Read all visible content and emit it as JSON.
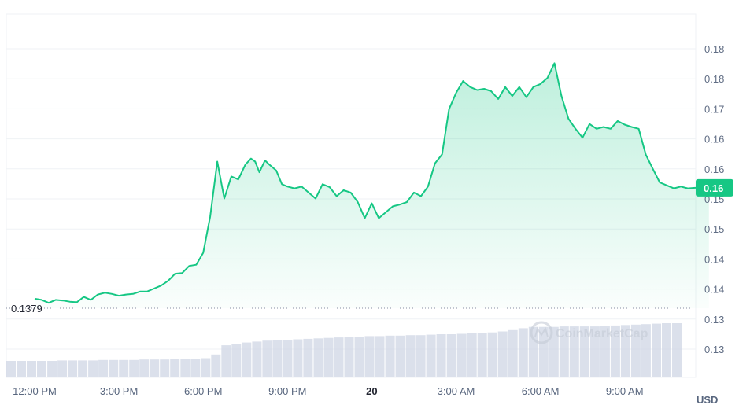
{
  "chart_data": {
    "type": "area",
    "y_ticks": [
      "0.18",
      "0.18",
      "0.17",
      "0.16",
      "0.16",
      "0.15",
      "0.15",
      "0.14",
      "0.14",
      "0.13",
      "0.13"
    ],
    "x_ticks": [
      "12:00 PM",
      "3:00 PM",
      "6:00 PM",
      "9:00 PM",
      "20",
      "3:00 AM",
      "6:00 AM",
      "9:00 AM"
    ],
    "bold_x_tick": "20",
    "unit": "USD",
    "reference_label": "0.1379",
    "reference_value": 0.1379,
    "current_value_label": "0.16",
    "current_value": 0.1581,
    "ylim": [
      0.1263,
      0.1863
    ],
    "watermark": "CoinMarketCap",
    "colors": {
      "line": "#16c784",
      "badge": "#16c784",
      "volume": "#cfd6e4",
      "grid": "#eff2f5"
    },
    "grid": true,
    "series": [
      {
        "x_hours": [
          0.0,
          0.25,
          0.5,
          0.75,
          1.0,
          1.25,
          1.5,
          1.75,
          2.0,
          2.25,
          2.5,
          2.75,
          3.0,
          3.25,
          3.5,
          3.75,
          4.0,
          4.25,
          4.5,
          4.75,
          5.0,
          5.25,
          5.5,
          5.75,
          6.0,
          6.25,
          6.5,
          6.75,
          7.0,
          7.25,
          7.5,
          7.7,
          7.85,
          8.0,
          8.2,
          8.35,
          8.6,
          8.8,
          9.0,
          9.25,
          9.5,
          9.75,
          10.0,
          10.25,
          10.5,
          10.75,
          11.0,
          11.25,
          11.5,
          11.75,
          12.0,
          12.25,
          12.5,
          12.75,
          13.0,
          13.25,
          13.5,
          13.75,
          14.0,
          14.25,
          14.5,
          14.75,
          15.0,
          15.25,
          15.5,
          15.75,
          16.0,
          16.25,
          16.5,
          16.75,
          17.0,
          17.25,
          17.5,
          17.75,
          18.0,
          18.25,
          18.5,
          18.75,
          19.0,
          19.25,
          19.5,
          19.75,
          20.0,
          20.25,
          20.5,
          20.75,
          21.0,
          21.25,
          21.5,
          21.75,
          22.0,
          22.25,
          22.5,
          22.75,
          23.0,
          23.25,
          23.5,
          23.75,
          24.0
        ],
        "values": [
          0.1395,
          0.1393,
          0.1388,
          0.1393,
          0.1392,
          0.139,
          0.1389,
          0.1398,
          0.1393,
          0.1402,
          0.1405,
          0.1403,
          0.14,
          0.1402,
          0.1403,
          0.1407,
          0.1407,
          0.1412,
          0.1417,
          0.1425,
          0.1437,
          0.1438,
          0.145,
          0.1452,
          0.1472,
          0.1533,
          0.1625,
          0.1563,
          0.16,
          0.1595,
          0.162,
          0.163,
          0.1625,
          0.1607,
          0.1627,
          0.162,
          0.161,
          0.1587,
          0.1583,
          0.158,
          0.1583,
          0.1573,
          0.1563,
          0.1587,
          0.1582,
          0.1567,
          0.1577,
          0.1573,
          0.1557,
          0.153,
          0.1555,
          0.153,
          0.154,
          0.155,
          0.1553,
          0.1557,
          0.1573,
          0.1567,
          0.1583,
          0.1622,
          0.1637,
          0.1713,
          0.174,
          0.176,
          0.175,
          0.1745,
          0.1747,
          0.1743,
          0.173,
          0.175,
          0.1735,
          0.175,
          0.1733,
          0.175,
          0.1755,
          0.1765,
          0.179,
          0.1735,
          0.1697,
          0.168,
          0.1665,
          0.1688,
          0.168,
          0.1683,
          0.168,
          0.1693,
          0.1687,
          0.1683,
          0.168,
          0.1637,
          0.1613,
          0.159,
          0.1585,
          0.158,
          0.1583,
          0.158,
          0.1581,
          0.1581,
          0.1581
        ]
      }
    ],
    "volume_relative": [
      0.18,
      0.18,
      0.18,
      0.18,
      0.18,
      0.19,
      0.19,
      0.19,
      0.19,
      0.2,
      0.2,
      0.2,
      0.2,
      0.21,
      0.21,
      0.21,
      0.22,
      0.22,
      0.23,
      0.24,
      0.32,
      0.52,
      0.55,
      0.58,
      0.6,
      0.62,
      0.63,
      0.64,
      0.65,
      0.66,
      0.67,
      0.68,
      0.69,
      0.7,
      0.71,
      0.72,
      0.72,
      0.73,
      0.73,
      0.74,
      0.74,
      0.75,
      0.76,
      0.76,
      0.77,
      0.78,
      0.79,
      0.8,
      0.82,
      0.85,
      0.89,
      0.92,
      0.92,
      0.92,
      0.93,
      0.93,
      0.93,
      0.93,
      0.94,
      0.95,
      0.96,
      0.97,
      0.98,
      0.99,
      1.0,
      1.0
    ]
  }
}
